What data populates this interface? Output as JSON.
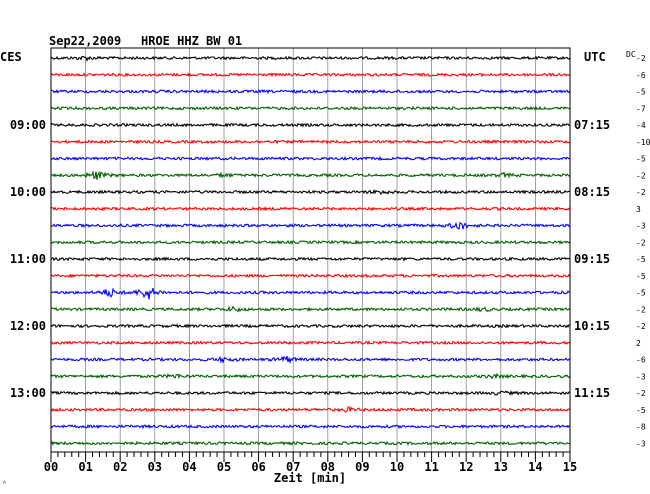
{
  "header": {
    "date": "Sep22,2009",
    "station": "HROE HHZ BW 01",
    "left_tz": "CES",
    "right_tz": "UTC",
    "dc_label": "DC"
  },
  "xaxis": {
    "label": "Zeit [min]",
    "ticks": [
      "00",
      "01",
      "02",
      "03",
      "04",
      "05",
      "06",
      "07",
      "08",
      "09",
      "10",
      "11",
      "12",
      "13",
      "14",
      "15"
    ]
  },
  "left_times": [
    "09:00",
    "10:00",
    "11:00",
    "12:00",
    "13:00"
  ],
  "right_times": [
    "07:15",
    "08:15",
    "09:15",
    "10:15",
    "11:15"
  ],
  "trace_colors": [
    "#000000",
    "#ff0000",
    "#0000ff",
    "#006000"
  ],
  "dc_offsets": [
    "-2",
    "-6",
    "-5",
    "-7",
    "-4",
    "-10",
    "-5",
    "-2",
    "-2",
    "3",
    "-3",
    "-2",
    "-5",
    "-5",
    "-5",
    "-2",
    "-2",
    "2",
    "-6",
    "-3",
    "-2",
    "-5",
    "-8",
    "-3"
  ],
  "events": [
    {
      "trace": 0,
      "minute": 1.0,
      "amp": 1.6
    },
    {
      "trace": 7,
      "minute": 1.3,
      "amp": 4.5
    },
    {
      "trace": 7,
      "minute": 5.0,
      "amp": 1.4
    },
    {
      "trace": 7,
      "minute": 13.1,
      "amp": 1.6
    },
    {
      "trace": 8,
      "minute": 9.5,
      "amp": 1.8
    },
    {
      "trace": 10,
      "minute": 11.8,
      "amp": 4.5
    },
    {
      "trace": 14,
      "minute": 1.7,
      "amp": 4.5
    },
    {
      "trace": 14,
      "minute": 2.8,
      "amp": 8.0
    },
    {
      "trace": 15,
      "minute": 5.3,
      "amp": 2.2
    },
    {
      "trace": 15,
      "minute": 12.5,
      "amp": 1.6
    },
    {
      "trace": 18,
      "minute": 5.0,
      "amp": 2.0
    },
    {
      "trace": 18,
      "minute": 6.8,
      "amp": 3.0
    },
    {
      "trace": 19,
      "minute": 3.6,
      "amp": 1.6
    },
    {
      "trace": 19,
      "minute": 12.8,
      "amp": 1.6
    },
    {
      "trace": 20,
      "minute": 13.0,
      "amp": 1.4
    },
    {
      "trace": 21,
      "minute": 8.6,
      "amp": 1.8
    }
  ]
}
